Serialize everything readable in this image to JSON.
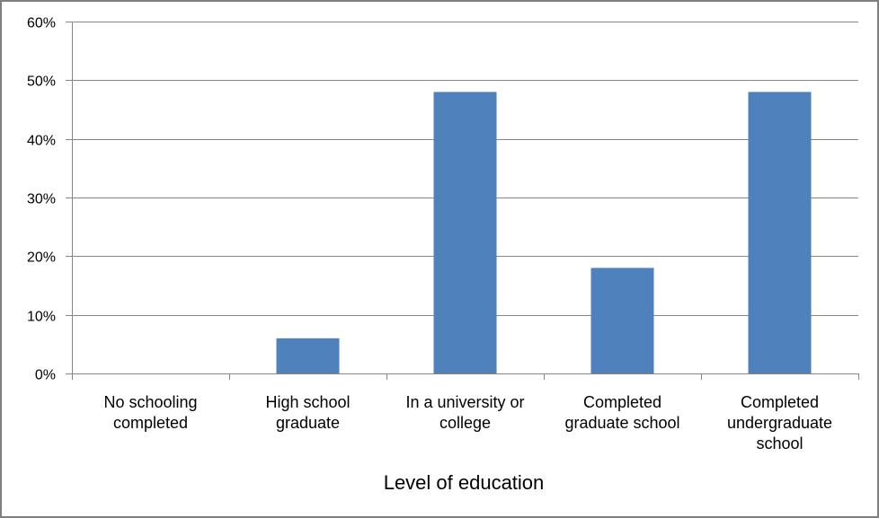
{
  "chart_data": {
    "type": "bar",
    "title": "",
    "xlabel": "Level of education",
    "ylabel": "",
    "categories": [
      "No schooling completed",
      "High school graduate",
      "In a university or college",
      "Completed graduate school",
      "Completed undergraduate school"
    ],
    "category_lines": [
      [
        "No schooling",
        "completed"
      ],
      [
        "High school",
        "graduate"
      ],
      [
        "In a university or",
        "college"
      ],
      [
        "Completed",
        "graduate school"
      ],
      [
        "Completed",
        "undergraduate",
        "school"
      ]
    ],
    "values": [
      0,
      6,
      48,
      18,
      48
    ],
    "value_format": "percent",
    "ylim": [
      0,
      60
    ],
    "yticks": [
      0,
      10,
      20,
      30,
      40,
      50,
      60
    ],
    "ytick_labels": [
      "0%",
      "10%",
      "20%",
      "30%",
      "40%",
      "50%",
      "60%"
    ],
    "grid": true,
    "legend": null,
    "colors": {
      "bar": "#4f81bd",
      "grid": "#868686",
      "border": "#7f7f7f"
    }
  }
}
